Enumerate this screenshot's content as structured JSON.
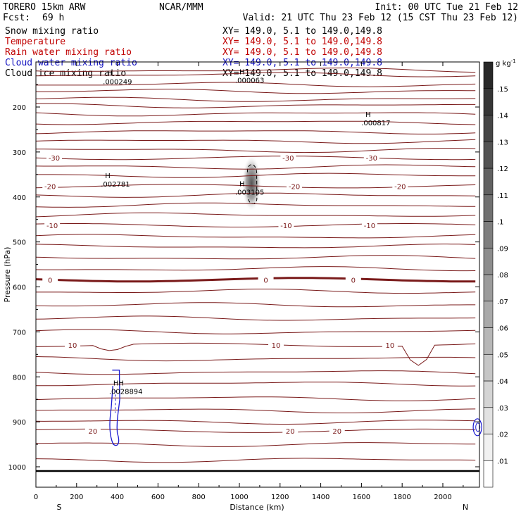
{
  "header": {
    "model": "TORERO   15km ARW",
    "org": "NCAR/MMM",
    "init": "Init: 00 UTC Tue 21 Feb 12",
    "fcst_label": "Fcst:",
    "fcst_value": "69 h",
    "valid": "Valid: 21 UTC Thu 23 Feb 12 (15 CST Thu 23 Feb 12)"
  },
  "fields": [
    {
      "name": "Snow mixing ratio",
      "xy": "XY= 149.0,  5.1 to 149.0,149.8",
      "color": "#000000"
    },
    {
      "name": "Temperature",
      "xy": "XY= 149.0,  5.1 to 149.0,149.8",
      "color": "#c00000"
    },
    {
      "name": "Rain water mixing ratio",
      "xy": "XY= 149.0,  5.1 to 149.0,149.8",
      "color": "#c00000"
    },
    {
      "name": "Cloud water mixing ratio",
      "xy": "XY= 149.0,  5.1 to 149.0,149.8",
      "color": "#1010c0"
    },
    {
      "name": "Cloud ice mixing ratio",
      "xy": "XY= 149.0,  5.1 to 149.0,149.8",
      "color": "#000000"
    }
  ],
  "chart_data": {
    "type": "contour cross-section",
    "xlabel": "Distance (km)",
    "ylabel": "Pressure (hPa)",
    "xlim": [
      0,
      2180
    ],
    "ylim": [
      1050,
      100
    ],
    "x_ticks": [
      0,
      200,
      400,
      600,
      800,
      1000,
      1200,
      1400,
      1600,
      1800,
      2000
    ],
    "y_ticks": [
      200,
      300,
      400,
      500,
      600,
      700,
      800,
      900,
      1000
    ],
    "endpoints": {
      "left": "S",
      "right": "N"
    },
    "colorbar": {
      "unit_label": "g kg",
      "unit_exp": "-1",
      "levels": [
        ".01",
        ".02",
        ".03",
        ".04",
        ".05",
        ".06",
        ".07",
        ".08",
        ".09",
        ".1",
        ".11",
        ".12",
        ".13",
        ".14",
        ".15"
      ]
    },
    "temperature_contours": [
      {
        "level": -30,
        "p": 313,
        "labels": [
          {
            "x": 90,
            "text": "-30"
          },
          {
            "x": 1240,
            "text": "-30"
          },
          {
            "x": 1650,
            "text": "-30"
          }
        ]
      },
      {
        "level": -20,
        "p": 376,
        "labels": [
          {
            "x": 70,
            "text": "-20"
          },
          {
            "x": 1270,
            "text": "-20"
          },
          {
            "x": 1790,
            "text": "-20"
          }
        ]
      },
      {
        "level": -10,
        "p": 463,
        "labels": [
          {
            "x": 80,
            "text": "-10"
          },
          {
            "x": 1230,
            "text": "-10"
          },
          {
            "x": 1640,
            "text": "-10"
          }
        ]
      },
      {
        "level": 0,
        "p": 584,
        "labels": [
          {
            "x": 70,
            "text": "0"
          },
          {
            "x": 1130,
            "text": "0"
          },
          {
            "x": 1560,
            "text": "0"
          }
        ]
      },
      {
        "level": 10,
        "p": 729,
        "labels": [
          {
            "x": 180,
            "text": "10"
          },
          {
            "x": 1180,
            "text": "10"
          },
          {
            "x": 1740,
            "text": "10"
          }
        ]
      },
      {
        "level": 20,
        "p": 920,
        "labels": [
          {
            "x": 280,
            "text": "20"
          },
          {
            "x": 1250,
            "text": "20"
          },
          {
            "x": 1480,
            "text": "20"
          }
        ]
      }
    ],
    "maxima": [
      {
        "x": 350,
        "p": 138,
        "mark": "H",
        "value": ".000249"
      },
      {
        "x": 1000,
        "p": 135,
        "mark": "H",
        "value": ".000063"
      },
      {
        "x": 1620,
        "p": 230,
        "mark": "H",
        "value": ".000817"
      },
      {
        "x": 340,
        "p": 366,
        "mark": "H",
        "value": ".002781"
      },
      {
        "x": 1000,
        "p": 384,
        "mark": "H",
        "value": ".003105"
      },
      {
        "x": 380,
        "p": 827,
        "mark": "HH",
        "value": ".0028894"
      }
    ]
  }
}
